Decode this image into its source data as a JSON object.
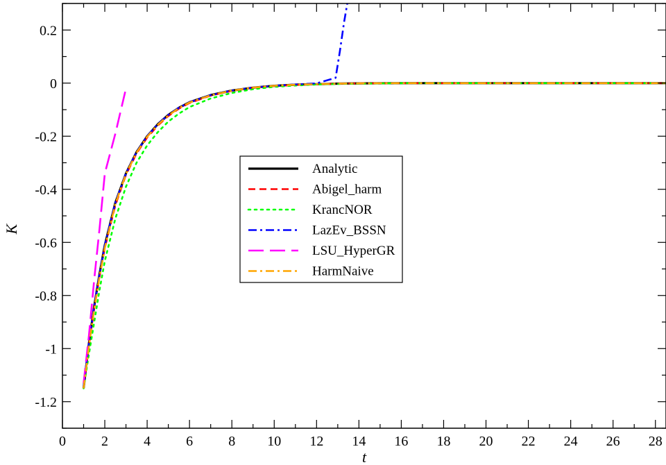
{
  "chart_data": {
    "type": "line",
    "xlabel": "t",
    "ylabel": "K",
    "xlim": [
      0,
      28.5
    ],
    "ylim": [
      -1.3,
      0.3
    ],
    "x_ticks": [
      0,
      2,
      4,
      6,
      8,
      10,
      12,
      14,
      16,
      18,
      20,
      22,
      24,
      26,
      28
    ],
    "x_tick_labels": [
      "0",
      "2",
      "4",
      "6",
      "8",
      "10",
      "12",
      "14",
      "16",
      "18",
      "20",
      "22",
      "24",
      "26",
      "28"
    ],
    "y_ticks": [
      -1.2,
      -1,
      -0.8,
      -0.6,
      -0.4,
      -0.2,
      0,
      0.2
    ],
    "y_tick_labels": [
      "-1.2",
      "-1",
      "-0.8",
      "-0.6",
      "-0.4",
      "-0.2",
      "0",
      "0.2"
    ],
    "legend_position": "center-left",
    "grid": false,
    "series": [
      {
        "name": "Analytic",
        "color": "#000000",
        "style": "solid",
        "x": [
          1.0,
          1.25,
          1.5,
          1.75,
          2.0,
          2.5,
          3.0,
          3.5,
          4.0,
          4.5,
          5.0,
          5.5,
          6.0,
          7.0,
          8.0,
          9.0,
          10.0,
          11.0,
          12.0,
          13.0,
          14.0,
          16.0,
          18.0,
          20.0,
          22.0,
          24.0,
          26.0,
          28.5
        ],
        "y": [
          -1.15,
          -0.98,
          -0.84,
          -0.72,
          -0.61,
          -0.45,
          -0.34,
          -0.26,
          -0.2,
          -0.155,
          -0.12,
          -0.093,
          -0.072,
          -0.045,
          -0.028,
          -0.017,
          -0.01,
          -0.006,
          -0.004,
          -0.002,
          -0.001,
          0,
          0,
          0,
          0,
          0,
          0,
          0
        ]
      },
      {
        "name": "Abigel_harm",
        "color": "#ff0000",
        "style": "dashed",
        "x": [
          1.0,
          1.25,
          1.5,
          1.75,
          2.0,
          2.5,
          3.0,
          3.5,
          4.0,
          4.5,
          5.0,
          5.5,
          6.0,
          7.0,
          8.0,
          9.0,
          10.0,
          11.0,
          12.0,
          13.0,
          14.0,
          16.0,
          18.0,
          20.0,
          22.0,
          24.0,
          26.0,
          28.5
        ],
        "y": [
          -1.15,
          -0.99,
          -0.85,
          -0.73,
          -0.62,
          -0.46,
          -0.345,
          -0.265,
          -0.205,
          -0.16,
          -0.124,
          -0.096,
          -0.075,
          -0.047,
          -0.029,
          -0.018,
          -0.011,
          -0.007,
          -0.004,
          -0.002,
          -0.001,
          0,
          0,
          0,
          0,
          0,
          0,
          0
        ]
      },
      {
        "name": "KrancNOR",
        "color": "#00ff00",
        "style": "dotted",
        "x": [
          1.0,
          1.25,
          1.5,
          1.75,
          2.0,
          2.5,
          3.0,
          3.5,
          4.0,
          4.5,
          5.0,
          5.5,
          6.0,
          7.0,
          8.0,
          9.0,
          10.0,
          11.0,
          12.0,
          13.0,
          14.0,
          16.0,
          18.0,
          20.0,
          22.0,
          24.0,
          26.0,
          28.5
        ],
        "y": [
          -1.15,
          -1.02,
          -0.9,
          -0.78,
          -0.67,
          -0.51,
          -0.39,
          -0.3,
          -0.235,
          -0.185,
          -0.145,
          -0.115,
          -0.09,
          -0.058,
          -0.037,
          -0.023,
          -0.014,
          -0.009,
          -0.005,
          -0.003,
          -0.002,
          0,
          0,
          0,
          0,
          0,
          0,
          0
        ]
      },
      {
        "name": "LazEv_BSSN",
        "color": "#0000ff",
        "style": "dash-dot",
        "x": [
          1.0,
          1.25,
          1.5,
          1.75,
          2.0,
          2.5,
          3.0,
          3.5,
          4.0,
          4.5,
          5.0,
          5.5,
          6.0,
          7.0,
          8.0,
          9.0,
          10.0,
          11.0,
          12.0,
          12.9,
          13.1,
          13.3,
          13.45
        ],
        "y": [
          -1.14,
          -0.98,
          -0.84,
          -0.72,
          -0.61,
          -0.45,
          -0.34,
          -0.26,
          -0.2,
          -0.155,
          -0.12,
          -0.093,
          -0.072,
          -0.045,
          -0.028,
          -0.017,
          -0.01,
          -0.005,
          -0.001,
          0.02,
          0.12,
          0.23,
          0.3
        ]
      },
      {
        "name": "LSU_HyperGR",
        "color": "#ff00ff",
        "style": "long-dashed",
        "x": [
          1.0,
          1.25,
          1.5,
          1.75,
          2.0,
          2.5,
          3.0
        ],
        "y": [
          -1.13,
          -0.95,
          -0.74,
          -0.55,
          -0.34,
          -0.19,
          -0.02
        ]
      },
      {
        "name": "HarmNaive",
        "color": "#ffa500",
        "style": "dash-dot",
        "x": [
          1.0,
          1.25,
          1.5,
          1.75,
          2.0,
          2.5,
          3.0,
          3.5,
          4.0,
          4.5,
          5.0,
          5.5,
          6.0,
          7.0,
          8.0,
          9.0,
          10.0,
          11.0,
          12.0,
          13.0,
          14.0,
          16.0,
          18.0,
          20.0,
          22.0,
          24.0,
          26.0,
          28.5
        ],
        "y": [
          -1.15,
          -0.99,
          -0.85,
          -0.73,
          -0.62,
          -0.455,
          -0.342,
          -0.262,
          -0.202,
          -0.157,
          -0.122,
          -0.094,
          -0.073,
          -0.046,
          -0.028,
          -0.017,
          -0.01,
          -0.006,
          -0.004,
          -0.002,
          -0.001,
          0,
          0,
          0,
          0,
          0,
          0,
          0
        ]
      }
    ]
  }
}
